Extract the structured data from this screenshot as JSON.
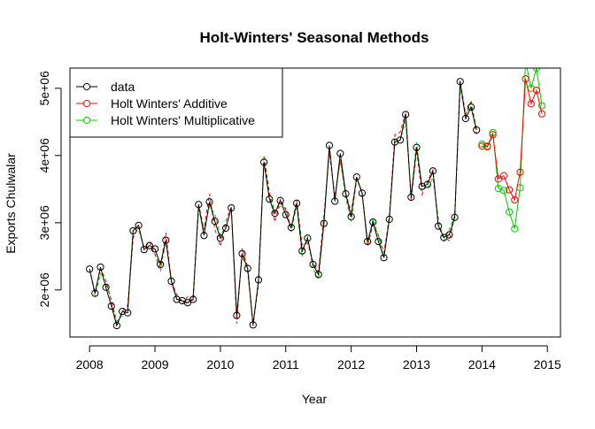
{
  "chart_data": {
    "type": "line",
    "title": "Holt-Winters' Seasonal Methods",
    "xlabel": "Year",
    "ylabel": "Exports Chulwalar",
    "xlim": [
      2007.7,
      2015.2
    ],
    "ylim": [
      1300000,
      5300000
    ],
    "x_ticks": [
      2008,
      2009,
      2010,
      2011,
      2012,
      2013,
      2014,
      2015
    ],
    "x_tick_labels": [
      "2008",
      "2009",
      "2010",
      "2011",
      "2012",
      "2013",
      "2014",
      "2015"
    ],
    "y_ticks": [
      2000000,
      3000000,
      4000000,
      5000000
    ],
    "y_tick_labels": [
      "2e+06",
      "3e+06",
      "4e+06",
      "5e+06"
    ],
    "legend": {
      "position": "top-left",
      "entries": [
        "data",
        "Holt Winters' Additive",
        "Holt Winters' Multiplicative"
      ]
    },
    "colors": {
      "data": "#000000",
      "additive": "#ff0000",
      "multiplicative": "#00cc00"
    },
    "series": [
      {
        "name": "data",
        "start": 2008,
        "frequency": 12,
        "values": [
          2310000,
          1950000,
          2340000,
          2040000,
          1760000,
          1470000,
          1680000,
          1660000,
          2880000,
          2960000,
          2600000,
          2660000,
          2610000,
          2380000,
          2740000,
          2130000,
          1860000,
          1840000,
          1810000,
          1860000,
          3270000,
          2810000,
          3310000,
          3020000,
          2770000,
          2920000,
          3220000,
          1620000,
          2540000,
          2320000,
          1480000,
          2150000,
          3900000,
          3350000,
          3140000,
          3330000,
          3120000,
          2930000,
          3290000,
          2580000,
          2770000,
          2380000,
          2230000,
          2990000,
          4150000,
          3320000,
          4030000,
          3430000,
          3090000,
          3680000,
          3440000,
          2720000,
          3010000,
          2720000,
          2480000,
          3050000,
          4200000,
          4230000,
          4610000,
          3380000,
          4120000,
          3540000,
          3570000,
          3770000,
          2950000,
          2780000,
          2820000,
          3080000,
          5100000,
          4550000,
          4720000,
          4380000
        ]
      },
      {
        "name": "Holt Winters' Additive",
        "start": 2014,
        "frequency": 12,
        "values": [
          4140000,
          4130000,
          4310000,
          3650000,
          3700000,
          3490000,
          3340000,
          3750000,
          5140000,
          4770000,
          4970000,
          4620000
        ]
      },
      {
        "name": "Holt Winters' Multiplicative",
        "start": 2014,
        "frequency": 12,
        "values": [
          4170000,
          4140000,
          4340000,
          3510000,
          3480000,
          3160000,
          2910000,
          3520000,
          5400000,
          5000000,
          5300000,
          4740000
        ]
      }
    ]
  }
}
